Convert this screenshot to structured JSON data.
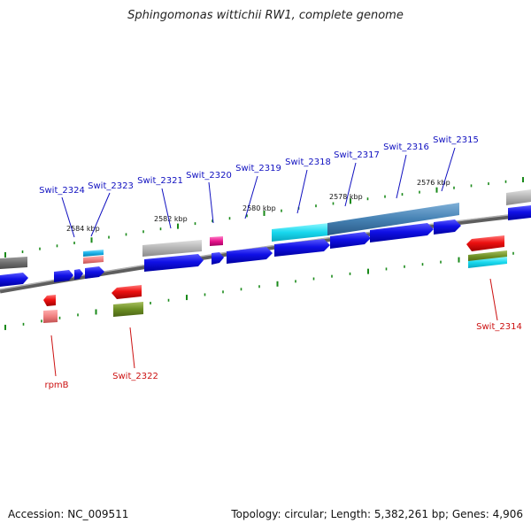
{
  "title": "Sphingomonas wittichii RW1, complete genome",
  "footer": {
    "accession": "Accession: NC_009511",
    "summary": "Topology: circular; Length: 5,382,261 bp; Genes: 4,906"
  },
  "colors": {
    "forward_gene": "#1010e6",
    "reverse_gene": "#ee1111",
    "label_forward": "#1010c0",
    "label_reverse": "#cc1010",
    "tick": "#1a8a1a",
    "backbone": "#808080"
  },
  "scale_labels": [
    "2584 kbp",
    "2582 kbp",
    "2580 kbp",
    "2578 kbp",
    "2576 kbp"
  ],
  "forward_labels": [
    "Swit_2324",
    "Swit_2323",
    "Swit_2321",
    "Swit_2320",
    "Swit_2319",
    "Swit_2318",
    "Swit_2317",
    "Swit_2316",
    "Swit_2315"
  ],
  "reverse_labels": [
    "rpmB",
    "Swit_2322",
    "Swit_2314"
  ]
}
